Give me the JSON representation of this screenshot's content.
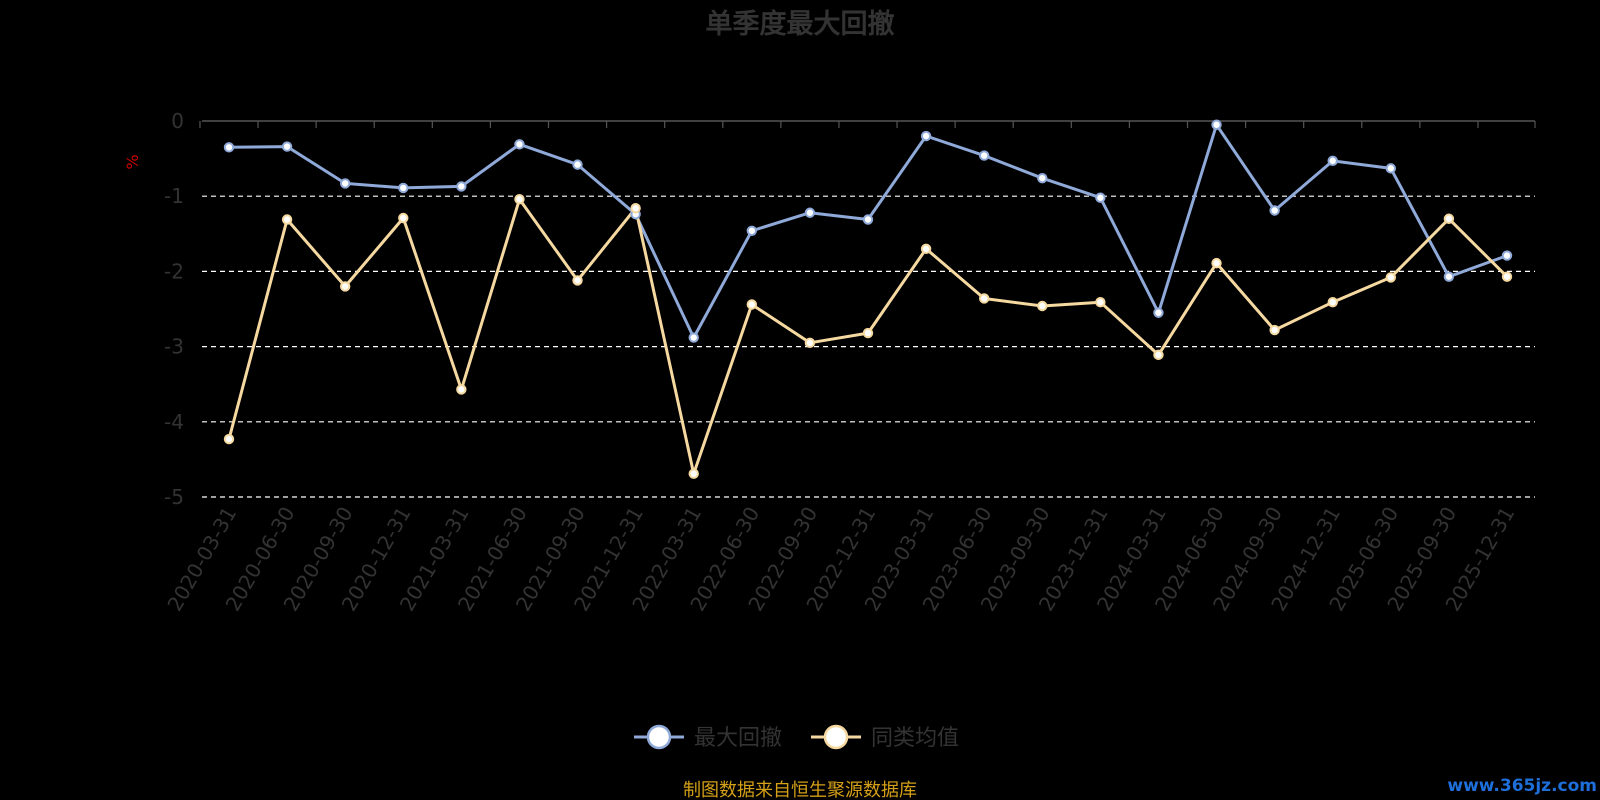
{
  "chart_data": {
    "type": "line",
    "title": "单季度最大回撤",
    "ylabel": "%",
    "ylim": [
      -5,
      0
    ],
    "y_ticks": [
      0,
      -1,
      -2,
      -3,
      -4,
      -5
    ],
    "grid": true,
    "legend_position": "bottom-center",
    "categories": [
      "2020-03-31",
      "2020-06-30",
      "2020-09-30",
      "2020-12-31",
      "2021-03-31",
      "2021-06-30",
      "2021-09-30",
      "2021-12-31",
      "2022-03-31",
      "2022-06-30",
      "2022-09-30",
      "2022-12-31",
      "2023-03-31",
      "2023-06-30",
      "2023-09-30",
      "2023-12-31",
      "2024-03-31",
      "2024-06-30",
      "2024-09-30",
      "2024-12-31",
      "2025-06-30",
      "2025-09-30",
      "2025-12-31"
    ],
    "series": [
      {
        "name": "最大回撤",
        "color": "#8fa9d9",
        "values": [
          -0.35,
          -0.34,
          -0.83,
          -0.89,
          -0.87,
          -0.31,
          -0.58,
          -1.24,
          -2.88,
          -1.46,
          -1.22,
          -1.31,
          -0.2,
          -0.46,
          -0.76,
          -1.02,
          -2.55,
          -0.05,
          -1.19,
          -0.53,
          -0.63,
          -2.07,
          -1.79
        ]
      },
      {
        "name": "同类均值",
        "color": "#f5d9a0",
        "values": [
          -4.23,
          -1.31,
          -2.2,
          -1.29,
          -3.57,
          -1.04,
          -2.12,
          -1.16,
          -4.69,
          -2.44,
          -2.95,
          -2.82,
          -1.7,
          -2.36,
          -2.46,
          -2.41,
          -3.11,
          -1.89,
          -2.78,
          -2.41,
          -2.08,
          -1.3,
          -2.07
        ]
      }
    ]
  },
  "source_note": "制图数据来自恒生聚源数据库",
  "watermark": "www.365jz.com",
  "colors": {
    "background": "#000000",
    "axis": "#555555",
    "grid": "#ffffff",
    "text": "#333333",
    "source": "#d4a017",
    "watermark": "#1e6fd9",
    "unit": "#cc0000"
  }
}
